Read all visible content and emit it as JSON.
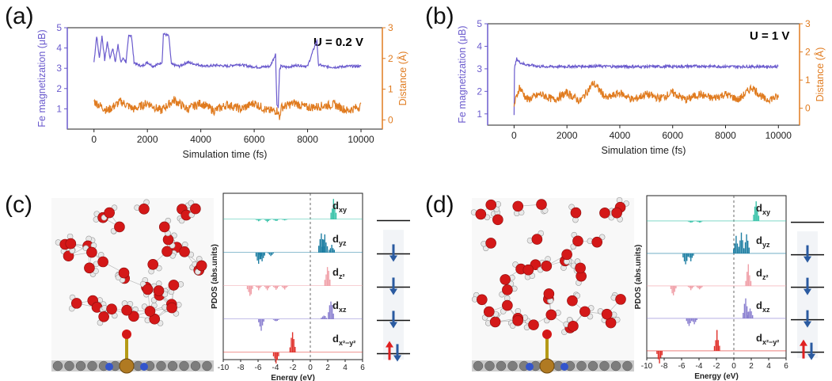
{
  "panels": {
    "a": {
      "label": "(a)",
      "annotation": "U = 0.2 V"
    },
    "b": {
      "label": "(b)",
      "annotation": "U = 1 V"
    },
    "c": {
      "label": "(c)"
    },
    "d": {
      "label": "(d)"
    }
  },
  "colors": {
    "magnetization": "#6a5acd",
    "distance": "#e07b1f",
    "dxy": "#36c2a8",
    "dyz": "#1f7fa3",
    "dz2": "#f0a0a8",
    "dxz": "#8a7fd0",
    "dx2y2": "#e0302a",
    "arrow_down": "#2a5aa0",
    "arrow_up": "#e02020"
  },
  "chart_data": [
    {
      "type": "line",
      "panel": "a",
      "title": "U = 0.2 V",
      "xlabel": "Simulation time (fs)",
      "ylabel": "Fe magnetization (μB)",
      "y2label": "Distance (Å)",
      "xlim": [
        -1000,
        10800
      ],
      "ylim": [
        0,
        5
      ],
      "y2lim": [
        -0.3,
        3
      ],
      "xticks": [
        "0",
        "2000",
        "4000",
        "6000",
        "8000",
        "10000"
      ],
      "yticks": [
        "1",
        "2",
        "3",
        "4",
        "5"
      ],
      "y2ticks": [
        "0",
        "1",
        "2",
        "3"
      ],
      "series": [
        {
          "name": "",
          "axis": "left",
          "color": "#6a5acd",
          "base": 3.1,
          "x": [
            0,
            100,
            200,
            300,
            400,
            500,
            600,
            700,
            800,
            900,
            1000,
            1100,
            1200,
            1300,
            1400,
            1500,
            1600,
            1800,
            2000,
            2200,
            2400,
            2550,
            2600,
            2800,
            2900,
            3200,
            3500,
            3800,
            4200,
            4600,
            5000,
            5400,
            5800,
            6200,
            6600,
            6800,
            6850,
            6900,
            6950,
            7000,
            7200,
            7600,
            8000,
            8350,
            8400,
            8600,
            9000,
            9500,
            10000
          ],
          "y": [
            3.3,
            4.6,
            3.5,
            4.6,
            3.4,
            4.3,
            3.5,
            4.0,
            3.3,
            4.2,
            3.3,
            3.5,
            3.3,
            4.6,
            4.65,
            3.3,
            3.2,
            3.1,
            3.3,
            3.1,
            3.2,
            3.3,
            4.7,
            4.6,
            3.2,
            3.1,
            3.3,
            3.2,
            3.1,
            3.15,
            3.1,
            3.2,
            3.1,
            3.05,
            3.1,
            3.7,
            1.2,
            1.1,
            2.9,
            3.1,
            3.05,
            3.15,
            3.1,
            4.4,
            3.2,
            3.1,
            3.05,
            3.1,
            3.1
          ]
        },
        {
          "name": "",
          "axis": "right",
          "color": "#e07b1f",
          "base": 0.3,
          "x": [
            0,
            500,
            1000,
            1500,
            2000,
            2500,
            3000,
            3500,
            4000,
            4500,
            5000,
            5500,
            6000,
            6500,
            6900,
            6950,
            7000,
            7500,
            8000,
            8500,
            9000,
            9500,
            10000
          ],
          "y": [
            0.6,
            0.3,
            0.6,
            0.35,
            0.55,
            0.3,
            0.65,
            0.35,
            0.55,
            0.3,
            0.5,
            0.35,
            0.55,
            0.3,
            0.3,
            0.0,
            0.4,
            0.55,
            0.4,
            0.45,
            0.5,
            0.3,
            0.45
          ]
        }
      ]
    },
    {
      "type": "line",
      "panel": "b",
      "title": "U = 1 V",
      "xlabel": "Simulation time (fs)",
      "ylabel": "Fe magnetization (μB)",
      "y2label": "Distance (Å)",
      "xlim": [
        -1000,
        10800
      ],
      "ylim": [
        0.5,
        5
      ],
      "y2lim": [
        -0.6,
        3
      ],
      "xticks": [
        "0",
        "2000",
        "4000",
        "6000",
        "8000",
        "10000"
      ],
      "yticks": [
        "1",
        "2",
        "3",
        "4",
        "5"
      ],
      "y2ticks": [
        "0",
        "1",
        "2",
        "3"
      ],
      "series": [
        {
          "name": "",
          "axis": "left",
          "color": "#6a5acd",
          "base": 3.1,
          "x": [
            0,
            10,
            100,
            200,
            400,
            700,
            1000,
            2000,
            3000,
            4000,
            5000,
            6000,
            7000,
            8000,
            9000,
            10000
          ],
          "y": [
            1.0,
            3.0,
            3.45,
            3.3,
            3.2,
            3.15,
            3.1,
            3.1,
            3.12,
            3.1,
            3.1,
            3.1,
            3.12,
            3.1,
            3.1,
            3.1
          ]
        },
        {
          "name": "",
          "axis": "right",
          "color": "#e07b1f",
          "base": 0.3,
          "x": [
            0,
            200,
            500,
            1000,
            1500,
            2000,
            2500,
            3000,
            3500,
            4000,
            4500,
            5000,
            5500,
            6000,
            6500,
            7000,
            7500,
            8000,
            8500,
            9000,
            9500,
            10000
          ],
          "y": [
            0.1,
            0.75,
            0.3,
            0.5,
            0.3,
            0.55,
            0.25,
            0.9,
            0.35,
            0.55,
            0.3,
            0.5,
            0.35,
            0.55,
            0.3,
            0.5,
            0.35,
            0.5,
            0.3,
            0.75,
            0.3,
            0.4
          ]
        }
      ]
    },
    {
      "type": "area",
      "panel": "c",
      "xlabel": "Energy (eV)",
      "ylabel": "PDOS (abs.units)",
      "xlim": [
        -10,
        6
      ],
      "xticks": [
        "-10",
        "-8",
        "-6",
        "-4",
        "-2",
        "0",
        "2",
        "4",
        "6"
      ],
      "orbitals": [
        {
          "name": "dxy",
          "main": "d",
          "sub": "xy",
          "color": "#36c2a8",
          "peaks_up": [
            [
              2.6,
              1.0
            ]
          ],
          "peaks_down": [
            [
              -6,
              0.15
            ],
            [
              -5,
              0.2
            ],
            [
              -4,
              0.15
            ],
            [
              -3,
              0.1
            ]
          ],
          "spin": "empty"
        },
        {
          "name": "dyz",
          "main": "d",
          "sub": "yz",
          "color": "#1f7fa3",
          "peaks_up": [
            [
              1.2,
              1.0
            ],
            [
              1.6,
              0.9
            ],
            [
              2.4,
              0.4
            ]
          ],
          "peaks_down": [
            [
              -6,
              1.0
            ],
            [
              -5.6,
              0.7
            ],
            [
              -4.6,
              0.3
            ]
          ],
          "spin": "down"
        },
        {
          "name": "dz2",
          "main": "d",
          "sub": "z²",
          "color": "#f0a0a8",
          "peaks_up": [
            [
              1.9,
              1.0
            ]
          ],
          "peaks_down": [
            [
              -7,
              0.9
            ],
            [
              -6,
              0.3
            ],
            [
              -5,
              0.3
            ],
            [
              -4,
              0.3
            ],
            [
              -3,
              0.3
            ]
          ],
          "spin": "down"
        },
        {
          "name": "dxz",
          "main": "d",
          "sub": "xz",
          "color": "#8a7fd0",
          "peaks_up": [
            [
              2.3,
              1.0
            ],
            [
              1.5,
              0.2
            ]
          ],
          "peaks_down": [
            [
              -5.7,
              0.8
            ],
            [
              -4,
              0.2
            ]
          ],
          "spin": "down"
        },
        {
          "name": "dx2-y2",
          "main": "d",
          "sub": "x²−y²",
          "color": "#e0302a",
          "peaks_up": [
            [
              -2.1,
              1.0
            ]
          ],
          "peaks_down": [
            [
              -4.0,
              0.9
            ]
          ],
          "spin": "updown"
        }
      ]
    },
    {
      "type": "area",
      "panel": "d",
      "xlabel": "Energy (eV)",
      "ylabel": "PDOS (abs.units)",
      "xlim": [
        -10,
        6
      ],
      "xticks": [
        "-10",
        "-8",
        "-6",
        "-4",
        "-2",
        "0",
        "2",
        "4",
        "6"
      ],
      "orbitals": [
        {
          "name": "dxy",
          "main": "d",
          "sub": "xy",
          "color": "#36c2a8",
          "peaks_up": [
            [
              2.5,
              1.0
            ]
          ],
          "peaks_down": [
            [
              -5,
              0.15
            ],
            [
              -4,
              0.15
            ]
          ],
          "spin": "empty"
        },
        {
          "name": "dyz",
          "main": "d",
          "sub": "yz",
          "color": "#1f7fa3",
          "peaks_up": [
            [
              0.2,
              0.8
            ],
            [
              0.8,
              1.0
            ],
            [
              1.4,
              0.9
            ]
          ],
          "peaks_down": [
            [
              -5.6,
              1.0
            ],
            [
              -5,
              0.6
            ]
          ],
          "spin": "down"
        },
        {
          "name": "dz2",
          "main": "d",
          "sub": "z²",
          "color": "#f0a0a8",
          "peaks_up": [
            [
              1.6,
              1.0
            ]
          ],
          "peaks_down": [
            [
              -7,
              0.8
            ],
            [
              -5,
              0.3
            ],
            [
              -4,
              0.3
            ]
          ],
          "spin": "down"
        },
        {
          "name": "dxz",
          "main": "d",
          "sub": "xz",
          "color": "#8a7fd0",
          "peaks_up": [
            [
              1.3,
              1.0
            ],
            [
              1.8,
              0.5
            ]
          ],
          "peaks_down": [
            [
              -5.2,
              0.7
            ],
            [
              -4.6,
              0.4
            ]
          ],
          "spin": "down"
        },
        {
          "name": "dx2-y2",
          "main": "d",
          "sub": "x²−y²",
          "color": "#e0302a",
          "peaks_up": [
            [
              -2.0,
              1.0
            ]
          ],
          "peaks_down": [
            [
              -8.6,
              1.0
            ]
          ],
          "spin": "updown"
        }
      ]
    }
  ]
}
